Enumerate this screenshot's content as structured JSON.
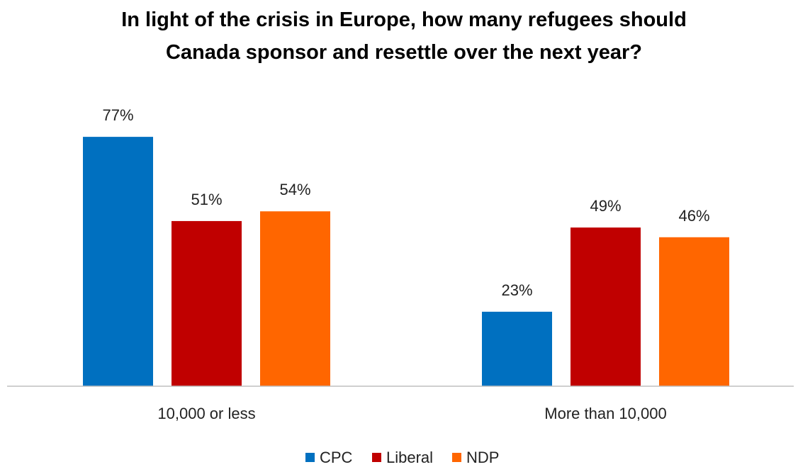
{
  "chart_data": {
    "type": "bar",
    "title_lines": [
      "In light of the crisis in Europe, how many refugees should",
      "Canada sponsor and resettle over the next year?"
    ],
    "categories": [
      "10,000 or less",
      "More than 10,000"
    ],
    "series": [
      {
        "name": "CPC",
        "color": "#0070C0",
        "values": [
          77,
          23
        ]
      },
      {
        "name": "Liberal",
        "color": "#C00000",
        "values": [
          51,
          49
        ]
      },
      {
        "name": "NDP",
        "color": "#FF6600",
        "values": [
          54,
          46
        ]
      }
    ],
    "value_suffix": "%",
    "ylim": [
      0,
      100
    ],
    "grid": false,
    "legend_position": "bottom"
  }
}
